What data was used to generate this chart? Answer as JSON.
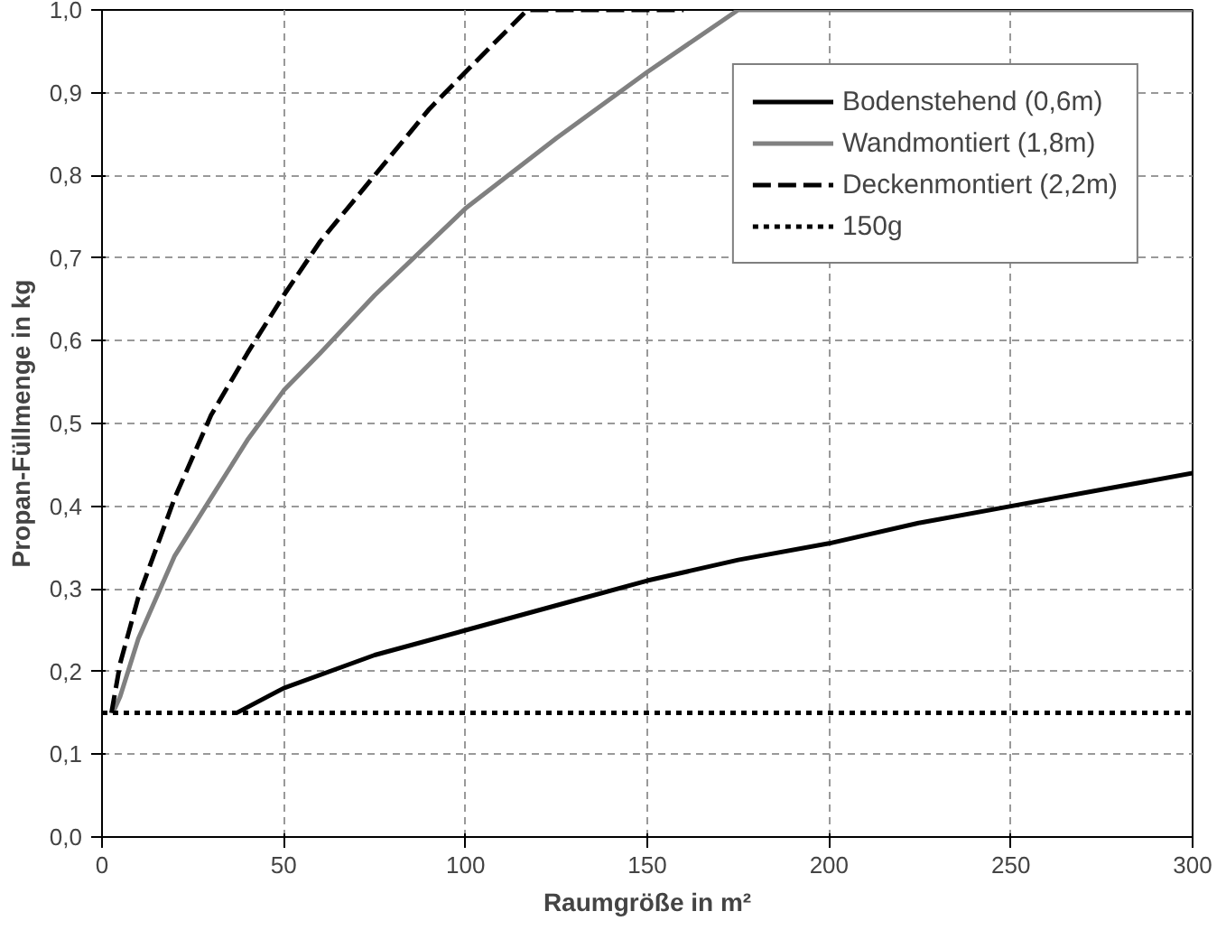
{
  "chart_data": {
    "type": "line",
    "xlabel": "Raumgröße in m²",
    "ylabel": "Propan-Füllmenge in kg",
    "xlim": [
      0,
      300
    ],
    "ylim": [
      0,
      1
    ],
    "xticks": [
      0,
      50,
      100,
      150,
      200,
      250,
      300
    ],
    "yticks": [
      {
        "value": 0,
        "label": "0,0"
      },
      {
        "value": 0.1,
        "label": "0,1"
      },
      {
        "value": 0.2,
        "label": "0,2"
      },
      {
        "value": 0.3,
        "label": "0,3"
      },
      {
        "value": 0.4,
        "label": "0,4"
      },
      {
        "value": 0.5,
        "label": "0,5"
      },
      {
        "value": 0.6,
        "label": "0,6"
      },
      {
        "value": 0.7,
        "label": "0,7"
      },
      {
        "value": 0.8,
        "label": "0,8"
      },
      {
        "value": 0.9,
        "label": "0,9"
      },
      {
        "value": 1,
        "label": "1,0"
      }
    ],
    "grid": true,
    "legend": "top right",
    "marker": "none",
    "series": [
      {
        "name": "Bodenstehend (0,6m)",
        "color": "#000000",
        "line_style": "solid",
        "x": [
          37,
          50,
          75,
          100,
          125,
          150,
          175,
          200,
          225,
          250,
          275,
          300
        ],
        "values": [
          0.15,
          0.18,
          0.22,
          0.25,
          0.28,
          0.31,
          0.335,
          0.355,
          0.38,
          0.4,
          0.42,
          0.44
        ]
      },
      {
        "name": "Wandmontiert (1,8m)",
        "color": "#808080",
        "line_style": "solid",
        "x": [
          3,
          5,
          10,
          20,
          30,
          40,
          50,
          60,
          75,
          100,
          125,
          150,
          175,
          300
        ],
        "values": [
          0.15,
          0.17,
          0.24,
          0.34,
          0.41,
          0.48,
          0.54,
          0.585,
          0.655,
          0.76,
          0.845,
          0.925,
          1.0,
          1.0
        ]
      },
      {
        "name": "Deckenmontiert (2,2m)",
        "color": "#000000",
        "line_style": "dashed",
        "x": [
          2.6,
          5,
          10,
          20,
          30,
          40,
          50,
          60,
          75,
          90,
          100,
          117,
          160
        ],
        "values": [
          0.15,
          0.21,
          0.29,
          0.41,
          0.51,
          0.585,
          0.655,
          0.72,
          0.8,
          0.88,
          0.925,
          1.0,
          1.0
        ]
      },
      {
        "name": "150g",
        "color": "#000000",
        "line_style": "dotted",
        "x": [
          0,
          300
        ],
        "values": [
          0.15,
          0.15
        ]
      }
    ]
  }
}
